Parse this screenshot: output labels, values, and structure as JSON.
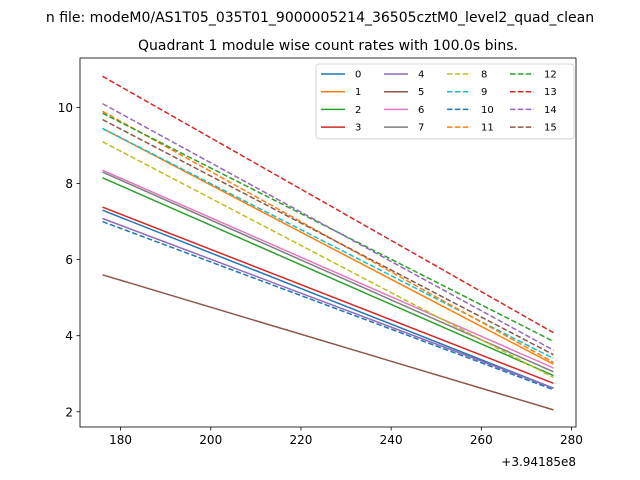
{
  "suptitle": "n file: modeM0/AS1T05_035T01_9000005214_36505cztM0_level2_quad_clean",
  "chart_data": {
    "type": "line",
    "title": "Quadrant 1 module wise count rates with 100.0s bins.",
    "xlabel": "",
    "ylabel": "",
    "x_offset_label": "+3.94185e8",
    "xlim": [
      171,
      281
    ],
    "ylim": [
      1.6,
      11.3
    ],
    "xticks": [
      180,
      200,
      220,
      240,
      260,
      280
    ],
    "yticks": [
      2,
      4,
      6,
      8,
      10
    ],
    "grid": false,
    "legend_placement": "top-right",
    "legend_columns": 4,
    "x": [
      176,
      276
    ],
    "series": [
      {
        "name": "0",
        "values": [
          7.3,
          2.62
        ],
        "color": "#1f77b4",
        "style": "solid"
      },
      {
        "name": "1",
        "values": [
          9.45,
          3.25
        ],
        "color": "#ff7f0e",
        "style": "solid"
      },
      {
        "name": "2",
        "values": [
          8.15,
          2.95
        ],
        "color": "#2ca02c",
        "style": "solid"
      },
      {
        "name": "3",
        "values": [
          7.38,
          2.75
        ],
        "color": "#d62728",
        "style": "solid"
      },
      {
        "name": "4",
        "values": [
          7.08,
          2.62
        ],
        "color": "#9467bd",
        "style": "solid"
      },
      {
        "name": "5",
        "values": [
          5.6,
          2.05
        ],
        "color": "#8c564b",
        "style": "solid"
      },
      {
        "name": "6",
        "values": [
          8.35,
          3.15
        ],
        "color": "#e377c2",
        "style": "solid"
      },
      {
        "name": "7",
        "values": [
          8.3,
          3.05
        ],
        "color": "#7f7f7f",
        "style": "solid"
      },
      {
        "name": "8",
        "values": [
          9.1,
          2.9
        ],
        "color": "#bcbd22",
        "style": "dashed"
      },
      {
        "name": "9",
        "values": [
          9.45,
          3.4
        ],
        "color": "#17becf",
        "style": "dashed"
      },
      {
        "name": "10",
        "values": [
          7.0,
          2.58
        ],
        "color": "#1f77b4",
        "style": "dashed"
      },
      {
        "name": "11",
        "values": [
          9.9,
          3.3
        ],
        "color": "#ff7f0e",
        "style": "dashed"
      },
      {
        "name": "12",
        "values": [
          9.85,
          3.85
        ],
        "color": "#2ca02c",
        "style": "dashed"
      },
      {
        "name": "13",
        "values": [
          10.82,
          4.08
        ],
        "color": "#d62728",
        "style": "dashed"
      },
      {
        "name": "14",
        "values": [
          10.1,
          3.62
        ],
        "color": "#9467bd",
        "style": "dashed"
      },
      {
        "name": "15",
        "values": [
          9.68,
          3.5
        ],
        "color": "#8c564b",
        "style": "dashed"
      }
    ]
  }
}
